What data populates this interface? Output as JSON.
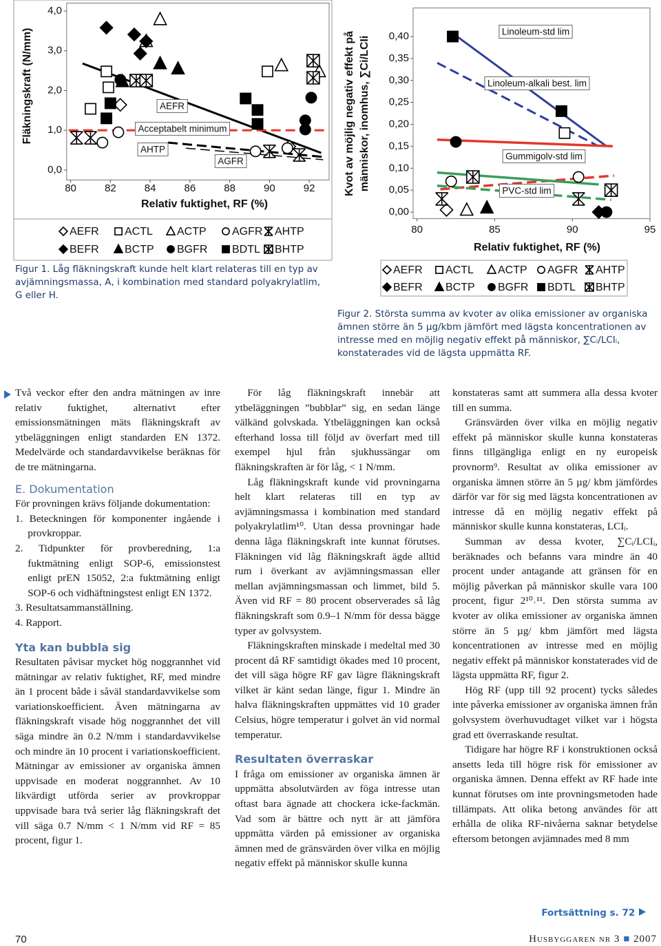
{
  "chart_data": [
    {
      "type": "scatter",
      "caption": "Figur 1. Låg fläkningskraft kunde helt klart relateras till en typ av avjämningsmassa, A, i kombination med standard polyakrylatlim, G eller H.",
      "xlabel": "Relativ fuktighet, RF (%)",
      "ylabel": [
        "Fläkningskraft (N/mm)"
      ],
      "xlim": [
        79.8,
        93.0
      ],
      "ylim": [
        -0.25,
        4.2
      ],
      "xticks": [
        80,
        82,
        84,
        86,
        88,
        90,
        92
      ],
      "yticks": [
        {
          "value": 0,
          "label": "0,0"
        },
        {
          "value": 1,
          "label": "1,0"
        },
        {
          "value": 2,
          "label": "2,0"
        },
        {
          "value": 3,
          "label": "3,0"
        },
        {
          "value": 4,
          "label": "4,0"
        }
      ],
      "grid": false,
      "series": [
        {
          "name": "AEFR",
          "marker": "diamond",
          "filled": false,
          "color": "#000000",
          "x": [
            82.5,
            91.0
          ],
          "y": [
            1.64,
            0.59
          ]
        },
        {
          "name": "ACTL",
          "marker": "square",
          "filled": false,
          "color": "#000000",
          "x": [
            81.0,
            81.8,
            81.9,
            89.9
          ],
          "y": [
            1.54,
            2.48,
            2.08,
            2.48
          ]
        },
        {
          "name": "ACTP",
          "marker": "triangle",
          "filled": false,
          "color": "#000000",
          "x": [
            84.5,
            83.8,
            90.6,
            92.5
          ],
          "y": [
            3.79,
            3.24,
            2.63,
            2.48
          ]
        },
        {
          "name": "AGFR",
          "marker": "circle",
          "filled": false,
          "color": "#000000",
          "x": [
            81.6,
            82.4,
            89.3,
            90.9
          ],
          "y": [
            0.69,
            0.95,
            0.47,
            0.55
          ]
        },
        {
          "name": "AHTP",
          "marker": "asterisk",
          "filled": false,
          "color": "#000000",
          "x": [
            80.3,
            81.0,
            90.0,
            91.5
          ],
          "y": [
            0.81,
            0.81,
            0.47,
            0.38
          ]
        },
        {
          "name": "BEFR",
          "marker": "diamond",
          "filled": true,
          "color": "#000000",
          "x": [
            81.8,
            83.2,
            83.5,
            83.8
          ],
          "y": [
            3.58,
            3.41,
            2.93,
            3.24
          ]
        },
        {
          "name": "BCTP",
          "marker": "triangle",
          "filled": true,
          "color": "#000000",
          "x": [
            84.5,
            85.4,
            82.6
          ],
          "y": [
            2.68,
            2.55,
            2.23
          ]
        },
        {
          "name": "BGFR",
          "marker": "circle",
          "filled": true,
          "color": "#000000",
          "x": [
            82.5,
            92.1,
            91.8,
            91.8
          ],
          "y": [
            2.27,
            1.82,
            1.25,
            1.02
          ]
        },
        {
          "name": "BDTL",
          "marker": "square",
          "filled": true,
          "color": "#000000",
          "x": [
            82.0,
            81.8,
            88.8,
            89.4,
            89.4
          ],
          "y": [
            1.68,
            1.3,
            1.8,
            1.51,
            1.16
          ]
        },
        {
          "name": "BHTP",
          "marker": "boxed-x",
          "filled": false,
          "color": "#000000",
          "x": [
            83.3,
            83.8,
            92.2,
            92.2
          ],
          "y": [
            2.25,
            2.25,
            2.75,
            2.32
          ]
        }
      ],
      "lines": [
        {
          "label": "AEFR",
          "x": [
            80.6,
            92.6
          ],
          "y": [
            2.68,
            0.43
          ],
          "color": "#000000",
          "dashed": false,
          "width": 3
        },
        {
          "label": "Acceptabelt minimum",
          "x": [
            79.9,
            92.9
          ],
          "y": [
            1.0,
            1.0
          ],
          "color": "#e8392b",
          "dashed": true,
          "width": 3
        },
        {
          "label": "AHTP",
          "x": [
            84.9,
            92.7
          ],
          "y": [
            0.69,
            0.33
          ],
          "color": "#000000",
          "dashed": true,
          "width": 3
        },
        {
          "label": "AGFR",
          "x": [
            85.8,
            92.7
          ],
          "y": [
            0.55,
            0.26
          ],
          "color": "#000000",
          "dashed": true,
          "width": 1.5
        }
      ]
    },
    {
      "type": "scatter",
      "caption": "Figur 2. Största summa av kvoter av olika emissioner av organiska ämnen större än 5 µg/kbm jämfört med lägsta koncentrationen av intresse med en möjlig negativ effekt på människor, ∑Cᵢ/LCIᵢ, konstaterades vid de lägsta uppmätta RF.",
      "xlabel": "Relativ fuktighet, RF (%)",
      "ylabel": [
        "Kvot av möjlig negativ effekt på",
        "människor, inomhus, ∑Ci/LCIi"
      ],
      "xlim": [
        79.75,
        95
      ],
      "ylim": [
        -0.015,
        0.465
      ],
      "xticks": [
        80,
        85,
        90,
        95
      ],
      "yticks": [
        {
          "value": 0,
          "label": "0,00"
        },
        {
          "value": 0.05,
          "label": "0,05"
        },
        {
          "value": 0.1,
          "label": "0,10"
        },
        {
          "value": 0.15,
          "label": "0,15"
        },
        {
          "value": 0.2,
          "label": "0,20"
        },
        {
          "value": 0.25,
          "label": "0,25"
        },
        {
          "value": 0.3,
          "label": "0,30"
        },
        {
          "value": 0.35,
          "label": "0,35"
        },
        {
          "value": 0.4,
          "label": "0,40"
        }
      ],
      "grid": false,
      "series": [
        {
          "name": "AEFR",
          "marker": "diamond",
          "filled": false,
          "color": "#000000",
          "x": [
            81.9
          ],
          "y": [
            0.005
          ]
        },
        {
          "name": "ACTL",
          "marker": "square",
          "filled": false,
          "color": "#000000",
          "x": [
            89.5
          ],
          "y": [
            0.18
          ]
        },
        {
          "name": "ACTP",
          "marker": "triangle",
          "filled": false,
          "color": "#000000",
          "x": [
            83.2
          ],
          "y": [
            0.005
          ]
        },
        {
          "name": "AGFR",
          "marker": "circle",
          "filled": false,
          "color": "#000000",
          "x": [
            82.2,
            90.4
          ],
          "y": [
            0.07,
            0.08
          ]
        },
        {
          "name": "AHTP",
          "marker": "asterisk",
          "filled": false,
          "color": "#000000",
          "x": [
            81.6,
            90.4
          ],
          "y": [
            0.03,
            0.03
          ]
        },
        {
          "name": "BEFR",
          "marker": "diamond",
          "filled": true,
          "color": "#000000",
          "x": [
            91.7
          ],
          "y": [
            0.0
          ]
        },
        {
          "name": "BCTP",
          "marker": "triangle",
          "filled": true,
          "color": "#000000",
          "x": [
            84.5
          ],
          "y": [
            0.01
          ]
        },
        {
          "name": "BGFR",
          "marker": "circle",
          "filled": true,
          "color": "#000000",
          "x": [
            82.5,
            92.2
          ],
          "y": [
            0.16,
            0.0
          ]
        },
        {
          "name": "BDTL",
          "marker": "square",
          "filled": true,
          "color": "#000000",
          "x": [
            82.3,
            89.3
          ],
          "y": [
            0.4,
            0.23
          ]
        },
        {
          "name": "BHTP",
          "marker": "boxed-x",
          "filled": false,
          "color": "#000000",
          "x": [
            83.6,
            92.5
          ],
          "y": [
            0.08,
            0.05
          ]
        }
      ],
      "lines": [
        {
          "label": "Linoleum-std lim",
          "x": [
            82.2,
            92.2
          ],
          "y": [
            0.41,
            0.15
          ],
          "color": "#2f3d9c",
          "dashed": false,
          "width": 3
        },
        {
          "label": "Linoleum-alkali best. lim",
          "x": [
            81.3,
            91.7
          ],
          "y": [
            0.34,
            0.15
          ],
          "color": "#2f3d9c",
          "dashed": true,
          "width": 3
        },
        {
          "label": "Gummigolv-std lim",
          "x": [
            81.3,
            92.6
          ],
          "y": [
            0.165,
            0.15
          ],
          "color": "#e2392b",
          "dashed": false,
          "width": 3.5
        },
        {
          "x": [
            81.5,
            92.7
          ],
          "y": [
            0.052,
            0.083
          ],
          "color": "#e2392b",
          "dashed": true,
          "width": 3.5
        },
        {
          "label": "PVC-std lim",
          "x": [
            81.3,
            91.7
          ],
          "y": [
            0.09,
            0.063
          ],
          "color": "#3a9e5c",
          "dashed": false,
          "width": 3.5
        },
        {
          "x": [
            81.3,
            92.5
          ],
          "y": [
            0.06,
            0.028
          ],
          "color": "#3a9e5c",
          "dashed": true,
          "width": 3.5
        }
      ]
    }
  ],
  "article": {
    "columns": [
      [
        {
          "kind": "lead",
          "text": "Två veckor efter den andra mätningen av inre relativ fuktighet, alternativt efter emissionsmätningen mäts fläkningskraft av ytbeläggningen enligt standarden EN 1372. Medelvärde och standardavvikelse beräknas för de tre mätningarna."
        },
        {
          "kind": "subhead",
          "text": "E. Dokumentation"
        },
        {
          "kind": "p",
          "text": "För provningen krävs följande dokumentation:"
        },
        {
          "kind": "li",
          "text": "1. Beteckningen för komponenter ingående i provkroppar."
        },
        {
          "kind": "li",
          "text": "2. Tidpunkter för provberedning, 1:a fuktmätning enligt SOP-6, emissionstest enligt prEN 15052, 2:a fuktmätning enligt SOP-6 och vidhäftningstest enligt EN 1372."
        },
        {
          "kind": "li",
          "text": "3. Resultatsammanställning."
        },
        {
          "kind": "li",
          "text": "4. Rapport."
        },
        {
          "kind": "heading",
          "text": "Yta kan bubbla sig"
        },
        {
          "kind": "p",
          "text": "Resultaten påvisar mycket hög noggrannhet vid mätningar av relativ fuktighet, RF, med mindre än 1 procent både i såväl standardavvikelse som variationskoefficient. Även mätningarna av fläkningskraft visade hög noggrannhet det vill säga mindre än 0.2 N/mm i standardavvikelse och mindre än 10 procent i variationskoefficient. Mätningar av emissioner av organiska ämnen uppvisade en moderat noggrannhet. Av 10 likvärdigt utförda serier av provkroppar uppvisade bara två serier låg fläkningskraft det vill säga 0.7 N/mm < 1 N/mm vid RF = 85 procent, figur 1."
        }
      ],
      [
        {
          "kind": "p",
          "text": "För låg fläkningskraft innebär att ytbeläggningen ”bubblar” sig, en sedan länge välkänd golvskada. Ytbeläggningen kan också efterhand lossa till följd av överfart med till exempel hjul från sjukhussängar om fläkningskraften är för låg, < 1 N/mm."
        },
        {
          "kind": "p",
          "text": "Låg fläkningskraft kunde vid provningarna helt klart relateras till en typ av avjämningsmassa i kombination med standard polyakrylatlim¹⁰. Utan dessa provningar hade denna låga fläkningskraft inte kunnat förutses. Fläkningen vid låg fläkningskraft ägde alltid rum i överkant av avjämningsmassan eller mellan avjämningsmassan och limmet, bild 5. Även vid RF = 80 procent observerades så låg fläkningskraft som 0.9–1 N/mm för dessa bägge typer av golvsystem."
        },
        {
          "kind": "p",
          "text": "Fläkningskraften minskade i medeltal med 30 procent då RF samtidigt ökades med 10 procent, det vill säga högre RF gav lägre fläkningskraft vilket är känt sedan länge, figur 1. Mindre än halva fläkningskraften uppmättes vid 10 grader Celsius, högre temperatur i golvet än vid normal temperatur."
        },
        {
          "kind": "heading",
          "text": "Resultaten överraskar"
        },
        {
          "kind": "p",
          "text": "I fråga om emissioner av organiska ämnen är uppmätta absolutvärden av föga intresse utan oftast bara ägnade att chockera icke-fackmän. Vad som är bättre och nytt är att jämföra uppmätta värden på emissioner av organiska ämnen med de gränsvärden över vilka en möjlig negativ effekt på människor skulle kunna"
        }
      ],
      [
        {
          "kind": "cont",
          "text": "konstateras samt att summera alla dessa kvoter till en summa."
        },
        {
          "kind": "p",
          "text": "Gränsvärden över vilka en möjlig negativ effekt på människor skulle kunna konstateras finns tillgängliga enligt en ny europeisk provnorm⁹. Resultat av olika emissioner av organiska ämnen större än 5 µg/ kbm jämfördes därför var för sig med lägsta koncentrationen av intresse då en möjlig negativ effekt på människor skulle kunna konstateras, LCIᵢ."
        },
        {
          "kind": "p",
          "text": "Summan av dessa kvoter, ∑Cᵢ/LCIᵢ, beräknades och befanns vara mindre än 40 procent under antagande att gränsen för en möjlig påverkan på människor skulle vara 100 procent, figur 2¹⁰˒¹¹. Den största summa av kvoter av olika emissioner av organiska ämnen större än 5 µg/ kbm jämfört med lägsta koncentrationen av intresse med en möjlig negativ effekt på människor konstaterades vid de lägsta uppmätta RF, figur 2."
        },
        {
          "kind": "p",
          "text": "Hög RF (upp till 92 procent) tycks således inte påverka emissioner av organiska ämnen från golvsystem överhuvudtaget vilket var i högsta grad ett överraskande resultat."
        },
        {
          "kind": "p",
          "text": "Tidigare har högre RF i konstruktionen också ansetts leda till högre risk för emissioner av organiska ämnen. Denna effekt av RF hade inte kunnat förutses om inte provningsmetoden hade tillämpats. Att olika betong användes för att erhålla de olika RF-nivåerna saknar betydelse eftersom betongen avjämnades med 8 mm"
        }
      ]
    ],
    "continuation": "Fortsättning s. 72",
    "footer": {
      "page": "70",
      "magazine": "Husbyggaren nr 3",
      "year": "2007"
    }
  }
}
